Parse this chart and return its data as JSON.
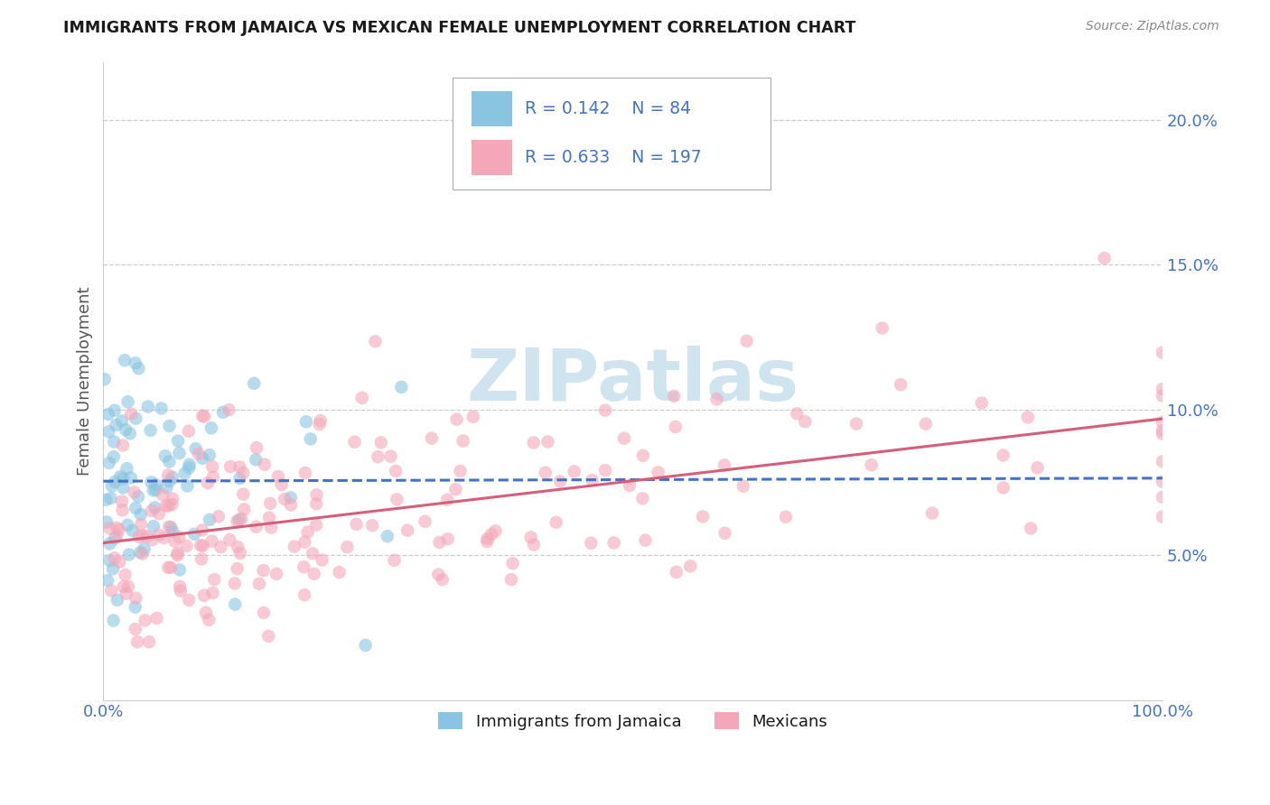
{
  "title": "IMMIGRANTS FROM JAMAICA VS MEXICAN FEMALE UNEMPLOYMENT CORRELATION CHART",
  "source": "Source: ZipAtlas.com",
  "ylabel": "Female Unemployment",
  "legend_label1": "Immigrants from Jamaica",
  "legend_label2": "Mexicans",
  "R1": 0.142,
  "N1": 84,
  "R2": 0.633,
  "N2": 197,
  "color_blue": "#89c4e1",
  "color_pink": "#f4a7b9",
  "color_blue_line": "#4472C4",
  "color_pink_line": "#d45f7a",
  "color_tick_label": "#4472C4",
  "color_title": "#1a1a1a",
  "color_ylabel": "#555555",
  "color_source": "#888888",
  "color_grid": "#cccccc",
  "background_color": "#ffffff",
  "watermark_color": "#d0e4f0",
  "xlim": [
    0.0,
    1.0
  ],
  "ylim": [
    0.0,
    0.22
  ],
  "yticks": [
    0.05,
    0.1,
    0.15,
    0.2
  ],
  "ytick_labels": [
    "5.0%",
    "10.0%",
    "15.0%",
    "20.0%"
  ],
  "xticks": [
    0.0,
    1.0
  ],
  "xtick_labels": [
    "0.0%",
    "100.0%"
  ]
}
